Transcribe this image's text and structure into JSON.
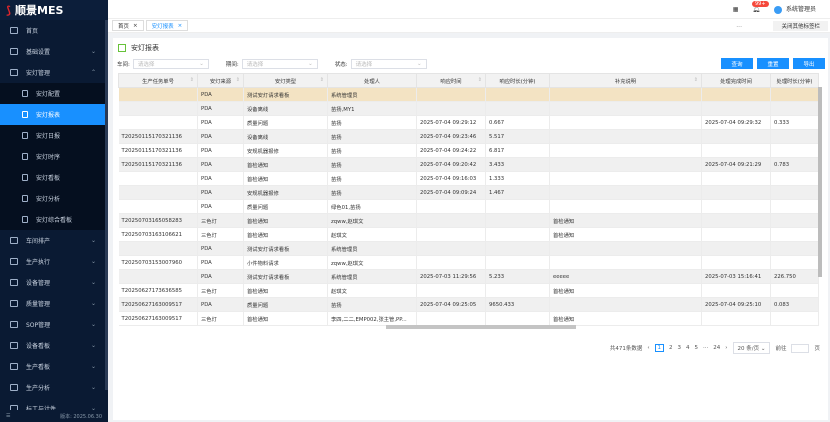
{
  "app": {
    "logo": "顺景MES",
    "version": "版本: 2025.06.30"
  },
  "sidebar": {
    "items": [
      {
        "label": "首页",
        "chev": false
      },
      {
        "label": "基础设置",
        "chev": true
      },
      {
        "label": "安灯管理",
        "chev": true,
        "open": true
      }
    ],
    "sub": [
      "安灯配置",
      "安灯报表",
      "安灯日报",
      "安灯时序",
      "安灯看板",
      "安灯分析",
      "安灯综合看板"
    ],
    "after": [
      "车间排产",
      "生产执行",
      "设备管理",
      "质量管理",
      "SOP管理",
      "设备看板",
      "生产看板",
      "生产分析",
      "标工与计件"
    ]
  },
  "topbar": {
    "badge": "99+",
    "user": "系统管理员"
  },
  "tabs": [
    {
      "label": "首页"
    },
    {
      "label": "安灯报表"
    }
  ],
  "tabbar": {
    "more": "...",
    "close_others": "关闭其他标签栏"
  },
  "page": {
    "title": "安灯报表"
  },
  "filters": [
    {
      "label": "车间:",
      "placeholder": "请选择"
    },
    {
      "label": "期间:",
      "placeholder": "请选择"
    },
    {
      "label": "状态:",
      "placeholder": "请选择"
    }
  ],
  "buttons": {
    "query": "查询",
    "reset": "重置",
    "export": "导出"
  },
  "table": {
    "columns": [
      "生产任务单号",
      "安灯来源",
      "安灯类型",
      "处理人",
      "响应时间",
      "响应时长(分钟)",
      "补充说明",
      "处理完成时间",
      "处理时长(分钟)"
    ],
    "rows": [
      [
        "",
        "PDA",
        "测试安灯请求看板",
        "系统管理员",
        "",
        "",
        "",
        "",
        ""
      ],
      [
        "",
        "PDA",
        "设备离线",
        "苗扬,MY1",
        "",
        "",
        "",
        "",
        ""
      ],
      [
        "",
        "PDA",
        "质量问题",
        "苗扬",
        "2025-07-04 09:29:12",
        "0.667",
        "",
        "2025-07-04 09:29:32",
        "0.333"
      ],
      [
        "T20250115170321136",
        "PDA",
        "设备离线",
        "苗扬",
        "2025-07-04 09:23:46",
        "5.517",
        "",
        "",
        ""
      ],
      [
        "T20250115170321136",
        "PDA",
        "安规机器报修",
        "苗扬",
        "2025-07-04 09:24:22",
        "6.817",
        "",
        "",
        ""
      ],
      [
        "T20250115170321136",
        "PDA",
        "首检通知",
        "苗扬",
        "2025-07-04 09:20:42",
        "3.433",
        "",
        "2025-07-04 09:21:29",
        "0.783"
      ],
      [
        "",
        "PDA",
        "首检通知",
        "苗扬",
        "2025-07-04 09:16:03",
        "1.333",
        "",
        "",
        ""
      ],
      [
        "",
        "PDA",
        "安规机器报修",
        "苗扬",
        "2025-07-04 09:09:24",
        "1.467",
        "",
        "",
        ""
      ],
      [
        "",
        "PDA",
        "质量问题",
        "绿色01,苗扬",
        "",
        "",
        "",
        "",
        ""
      ],
      [
        "T20250703165058283",
        "三色灯",
        "首检通知",
        "zqww,赵琪文",
        "",
        "",
        "首检通知",
        "",
        ""
      ],
      [
        "T20250703163106621",
        "三色灯",
        "首检通知",
        "赵琪文",
        "",
        "",
        "首检通知",
        "",
        ""
      ],
      [
        "",
        "PDA",
        "测试安灯请求看板",
        "系统管理员",
        "",
        "",
        "",
        "",
        ""
      ],
      [
        "T20250703153007960",
        "PDA",
        "小件物料请求",
        "zqww,赵琪文",
        "",
        "",
        "",
        "",
        ""
      ],
      [
        "",
        "PDA",
        "测试安灯请求看板",
        "系统管理员",
        "2025-07-03 11:29:56",
        "5.233",
        "eeeee",
        "2025-07-03 15:16:41",
        "226.750"
      ],
      [
        "T20250627173636585",
        "三色灯",
        "首检通知",
        "赵琪文",
        "",
        "",
        "首检通知",
        "",
        ""
      ],
      [
        "T20250627163009517",
        "PDA",
        "质量问题",
        "苗扬",
        "2025-07-04 09:25:05",
        "9650.433",
        "",
        "2025-07-04 09:25:10",
        "0.083"
      ],
      [
        "T20250627163009517",
        "三色灯",
        "首检通知",
        "李四,二二,EMP002,张主管,PP...",
        "",
        "",
        "首检通知",
        "",
        ""
      ]
    ]
  },
  "pagination": {
    "total": "共471条数据",
    "pages": [
      "1",
      "2",
      "3",
      "4",
      "5",
      "···",
      "24"
    ],
    "current": "1",
    "size": "20 条/页",
    "goto": "前往",
    "page_unit": "页"
  },
  "colors": {
    "sidebar": "#0a1a33",
    "accent": "#1890ff",
    "highlight_row": "#f3e3c3"
  }
}
